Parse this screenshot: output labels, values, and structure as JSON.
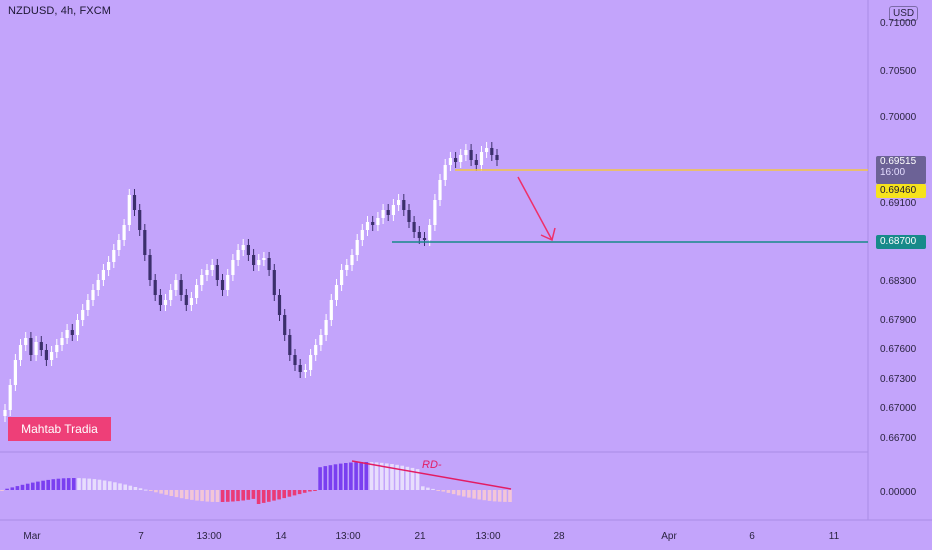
{
  "header": {
    "symbol": "NZDUSD, 4h, FXCM",
    "currency": "USD"
  },
  "watermark": "Mahtab Tradia",
  "annotation": "RD-",
  "price_axis": {
    "ticks": [
      "0.71000",
      "0.70500",
      "0.70000",
      "0.69100",
      "0.68300",
      "0.67900",
      "0.67600",
      "0.67300",
      "0.67000",
      "0.66700"
    ],
    "oscillator_tick": "0.00000"
  },
  "price_labels": {
    "last_price": "0.69515",
    "countdown": "16:00",
    "resistance": "0.69460",
    "target": "0.68700"
  },
  "time_axis": {
    "ticks": [
      "Mar",
      "7",
      "13:00",
      "14",
      "13:00",
      "21",
      "13:00",
      "28",
      "Apr",
      "6",
      "11"
    ]
  },
  "colors": {
    "background": "#c3a4fb",
    "bull_candle": "#ffffff",
    "bear_candle": "#3b2f6b",
    "resistance_line": "#f5c542",
    "target_line": "#178a8a",
    "arrow": "#ef2f6a",
    "hist_up": "#7a3ff0",
    "hist_down": "#ea3a76"
  }
}
